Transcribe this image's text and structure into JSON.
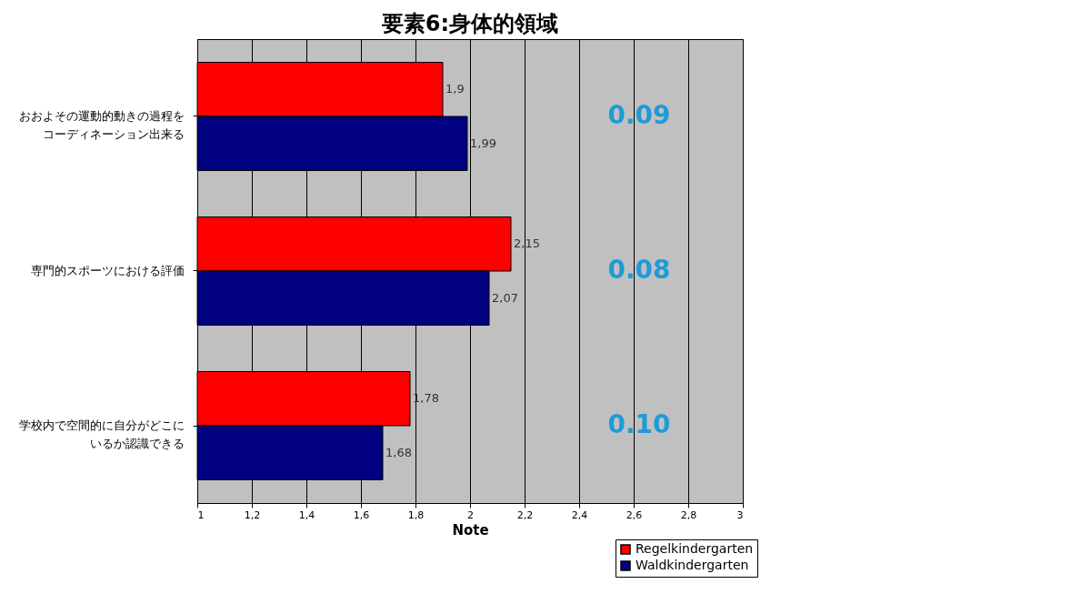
{
  "chart_data": {
    "type": "bar",
    "orientation": "horizontal",
    "title": "要素6:身体的領域",
    "xlabel": "Note",
    "categories": [
      "おおよその運動的動きの過程をコーディネーション出来る",
      "専門的スポーツにおける評価",
      "学校内で空間的に自分がどこにいるか認識できる"
    ],
    "series": [
      {
        "name": "Regelkindergarten",
        "color": "#ff0000",
        "values": [
          1.9,
          2.15,
          1.78
        ],
        "value_labels": [
          "1,9",
          "2,15",
          "1,78"
        ]
      },
      {
        "name": "Waldkindergarten",
        "color": "#000080",
        "values": [
          1.99,
          2.07,
          1.68
        ],
        "value_labels": [
          "1,99",
          "2,07",
          "1,68"
        ]
      }
    ],
    "xlim": [
      1,
      3
    ],
    "xticks": [
      1,
      {
        "value": 1.2,
        "label": "1,2"
      },
      {
        "value": 1.4,
        "label": "1,4"
      },
      {
        "value": 1.6,
        "label": "1,6"
      },
      {
        "value": 1.8,
        "label": "1,8"
      },
      2,
      {
        "value": 2.2,
        "label": "2,2"
      },
      {
        "value": 2.4,
        "label": "2,4"
      },
      {
        "value": 2.6,
        "label": "2,6"
      },
      {
        "value": 2.8,
        "label": "2,8"
      },
      3
    ],
    "grid": "x",
    "legend": "bottom right",
    "annotations": [
      "0.09",
      "0.08",
      "0.10"
    ]
  }
}
